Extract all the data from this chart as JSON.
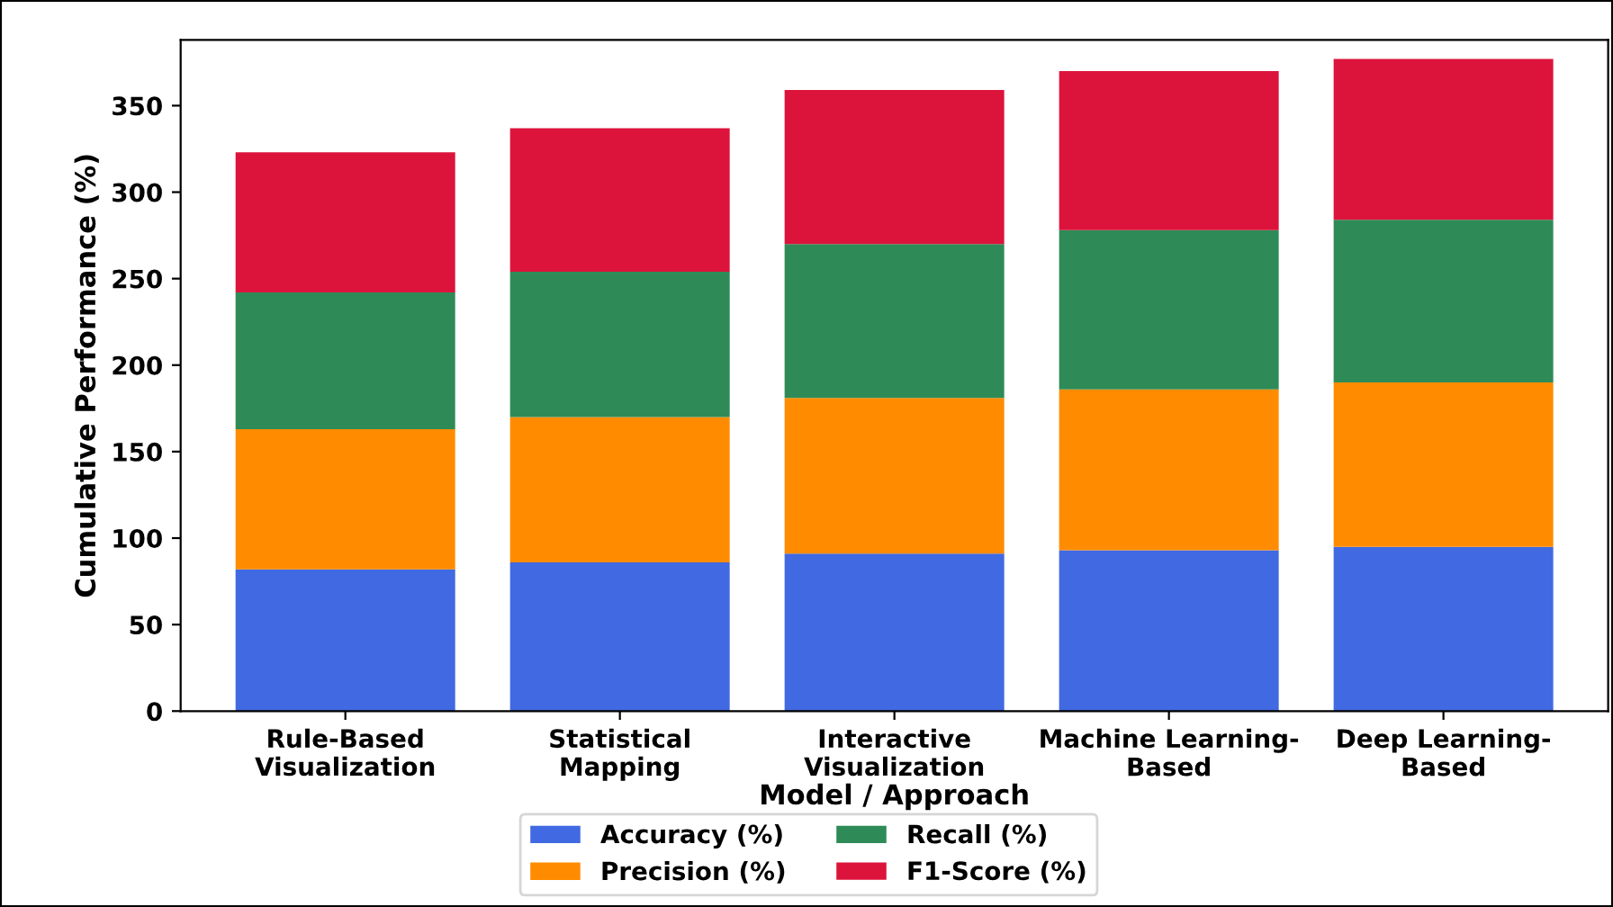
{
  "chart_data": {
    "type": "bar",
    "stacked": true,
    "xlabel": "Model / Approach",
    "ylabel": "Cumulative Performance (%)",
    "categories": [
      "Rule-Based\nVisualization",
      "Statistical\nMapping",
      "Interactive\nVisualization",
      "Machine Learning-\nBased",
      "Deep Learning-\nBased"
    ],
    "series": [
      {
        "name": "Accuracy (%)",
        "color": "#4169e1",
        "values": [
          82,
          86,
          91,
          93,
          95
        ]
      },
      {
        "name": "Precision (%)",
        "color": "#ff8c00",
        "values": [
          81,
          84,
          90,
          93,
          95
        ]
      },
      {
        "name": "Recall (%)",
        "color": "#2e8b57",
        "values": [
          79,
          84,
          89,
          92,
          94
        ]
      },
      {
        "name": "F1-Score (%)",
        "color": "#dc143c",
        "values": [
          81,
          83,
          89,
          92,
          93
        ]
      }
    ],
    "ylim": [
      0,
      388
    ],
    "yticks": [
      0,
      50,
      100,
      150,
      200,
      250,
      300,
      350
    ],
    "grid": false,
    "legend": "bottom"
  }
}
